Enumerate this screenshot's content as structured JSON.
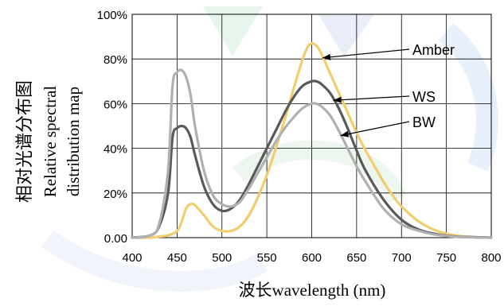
{
  "chart_data": {
    "type": "line",
    "title": "",
    "xlabel": "波长wavelength (nm)",
    "ylabel_lines": [
      "相对光谱分布图",
      "Relative spectral",
      "distribution map"
    ],
    "xlim": [
      400,
      800
    ],
    "ylim": [
      0,
      1.0
    ],
    "x_ticks": [
      400,
      450,
      500,
      550,
      600,
      650,
      700,
      750,
      800
    ],
    "y_ticks": [
      0,
      0.2,
      0.4,
      0.6,
      0.8,
      1.0
    ],
    "y_tick_labels": [
      "0.00",
      "20%",
      "40%",
      "60%",
      "80%",
      "100%"
    ],
    "grid": true,
    "series": [
      {
        "name": "Amber",
        "color": "#f2cd6f",
        "x": [
          400,
          420,
          430,
          440,
          450,
          455,
          460,
          465,
          470,
          480,
          490,
          500,
          510,
          520,
          530,
          540,
          550,
          560,
          570,
          580,
          590,
          595,
          600,
          605,
          610,
          620,
          630,
          640,
          650,
          660,
          670,
          680,
          690,
          700,
          720,
          740,
          760,
          780,
          800
        ],
        "y": [
          0,
          0,
          0.005,
          0.01,
          0.03,
          0.07,
          0.13,
          0.15,
          0.145,
          0.1,
          0.05,
          0.03,
          0.03,
          0.05,
          0.1,
          0.18,
          0.28,
          0.4,
          0.53,
          0.67,
          0.8,
          0.85,
          0.87,
          0.86,
          0.83,
          0.74,
          0.65,
          0.56,
          0.47,
          0.39,
          0.32,
          0.25,
          0.19,
          0.14,
          0.07,
          0.03,
          0.01,
          0.003,
          0
        ]
      },
      {
        "name": "WS",
        "color": "#5a5a5a",
        "x": [
          400,
          420,
          430,
          440,
          445,
          450,
          455,
          460,
          465,
          470,
          480,
          490,
          500,
          510,
          520,
          530,
          540,
          550,
          560,
          570,
          580,
          590,
          600,
          605,
          610,
          620,
          630,
          640,
          650,
          660,
          680,
          700,
          720,
          740,
          760,
          780,
          800
        ],
        "y": [
          0,
          0.01,
          0.05,
          0.2,
          0.45,
          0.49,
          0.5,
          0.49,
          0.45,
          0.37,
          0.23,
          0.15,
          0.12,
          0.13,
          0.17,
          0.24,
          0.32,
          0.4,
          0.48,
          0.56,
          0.63,
          0.68,
          0.7,
          0.7,
          0.69,
          0.65,
          0.58,
          0.49,
          0.39,
          0.3,
          0.17,
          0.08,
          0.035,
          0.015,
          0.005,
          0.002,
          0
        ]
      },
      {
        "name": "BW",
        "color": "#b0b0b0",
        "x": [
          400,
          420,
          430,
          440,
          445,
          450,
          455,
          460,
          465,
          470,
          480,
          490,
          500,
          510,
          520,
          530,
          540,
          550,
          560,
          570,
          580,
          590,
          600,
          605,
          610,
          620,
          630,
          640,
          650,
          660,
          680,
          700,
          720,
          740,
          760,
          780,
          800
        ],
        "y": [
          0,
          0.01,
          0.06,
          0.3,
          0.68,
          0.74,
          0.75,
          0.72,
          0.64,
          0.5,
          0.3,
          0.19,
          0.15,
          0.14,
          0.16,
          0.22,
          0.29,
          0.36,
          0.43,
          0.49,
          0.54,
          0.58,
          0.6,
          0.6,
          0.59,
          0.55,
          0.48,
          0.4,
          0.32,
          0.25,
          0.13,
          0.06,
          0.03,
          0.012,
          0.004,
          0.001,
          0
        ]
      }
    ],
    "annotations": [
      {
        "text": "Amber",
        "series": "Amber",
        "at_x": 612
      },
      {
        "text": "WS",
        "series": "WS",
        "at_x": 624
      },
      {
        "text": "BW",
        "series": "BW",
        "at_x": 632
      }
    ]
  }
}
